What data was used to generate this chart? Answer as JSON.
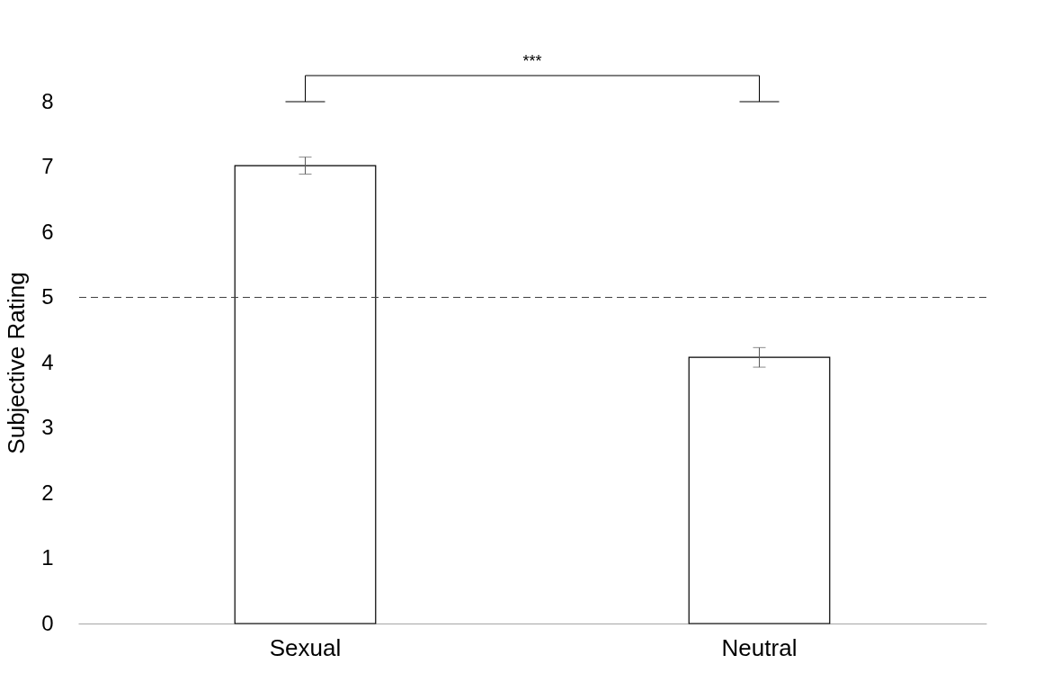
{
  "chart_data": {
    "type": "bar",
    "ylabel": "Subjective Rating",
    "categories": [
      "Sexual",
      "Neutral"
    ],
    "values": [
      7.02,
      4.08
    ],
    "errors": [
      0.13,
      0.15
    ],
    "color": "#ffffff",
    "ylim": [
      0,
      8
    ],
    "yticks": [
      0,
      1,
      2,
      3,
      4,
      5,
      6,
      7,
      8
    ],
    "ref_lines": [
      {
        "axis": "y",
        "value": 5,
        "color": "#404040",
        "line_style": "dashed"
      }
    ],
    "annotations": [
      "***"
    ],
    "grid": false
  }
}
